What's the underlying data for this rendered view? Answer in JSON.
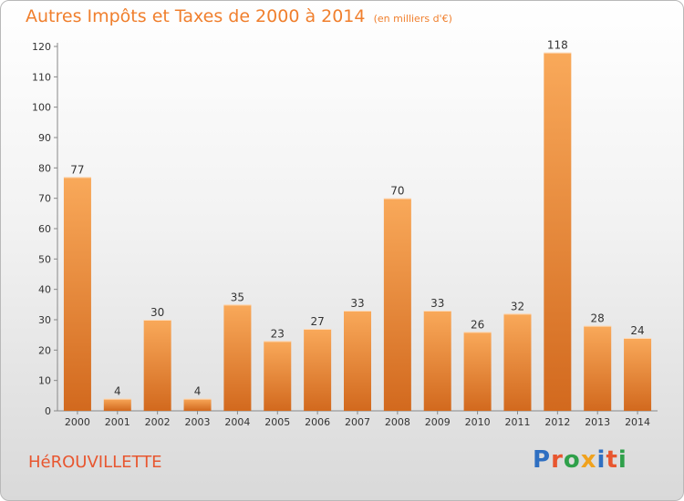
{
  "title": "Autres Impôts et Taxes de 2000 à 2014",
  "unit_label": "(en milliers d'€)",
  "commune": "HéROUVILLETTE",
  "logo": {
    "text": "Proxiti",
    "colors": [
      "#2f6fc1",
      "#e8562f",
      "#2fa04a",
      "#f0a21e",
      "#2f6fc1",
      "#e8562f",
      "#2fa04a"
    ]
  },
  "colors": {
    "bar_light": "#f9a95a",
    "bar_dark": "#d2691e",
    "title": "#f07f2d"
  },
  "chart_data": {
    "type": "bar",
    "title": "Autres Impôts et Taxes de 2000 à 2014",
    "subtitle": "(en milliers d'€)",
    "categories": [
      "2000",
      "2001",
      "2002",
      "2003",
      "2004",
      "2005",
      "2006",
      "2007",
      "2008",
      "2009",
      "2010",
      "2011",
      "2012",
      "2013",
      "2014"
    ],
    "values": [
      77,
      4,
      30,
      4,
      35,
      23,
      27,
      33,
      70,
      33,
      26,
      32,
      118,
      28,
      24
    ],
    "ylim": [
      0,
      120
    ],
    "yticks": [
      0,
      10,
      20,
      30,
      40,
      50,
      60,
      70,
      80,
      90,
      100,
      110,
      120
    ],
    "grid": false,
    "data_labels": true
  }
}
